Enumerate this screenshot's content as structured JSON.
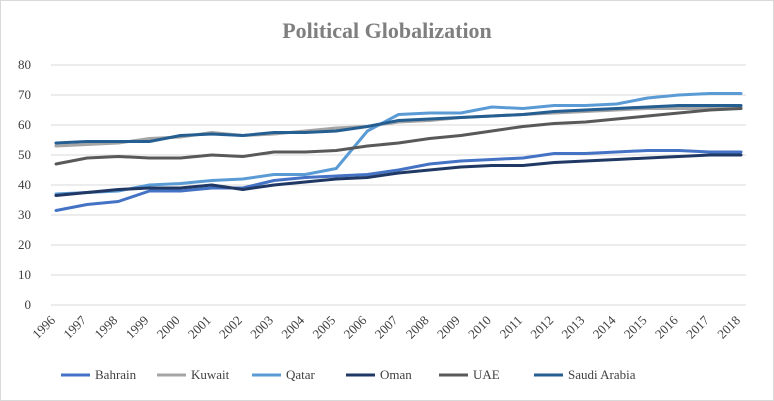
{
  "chart_data": {
    "type": "line",
    "title": "Political Globalization",
    "xlabel": "",
    "ylabel": "",
    "ylim": [
      0,
      80
    ],
    "yticks": [
      0,
      10,
      20,
      30,
      40,
      50,
      60,
      70,
      80
    ],
    "grid": true,
    "legend": "bottom",
    "x": [
      "1996",
      "1997",
      "1998",
      "1999",
      "2000",
      "2001",
      "2002",
      "2003",
      "2004",
      "2005",
      "2006",
      "2007",
      "2008",
      "2009",
      "2010",
      "2011",
      "2012",
      "2013",
      "2014",
      "2015",
      "2016",
      "2017",
      "2018"
    ],
    "series": [
      {
        "name": "Bahrain",
        "color": "#4472c4",
        "values": [
          31.5,
          33.5,
          34.5,
          38,
          38,
          39,
          39,
          41.5,
          42.5,
          43,
          43.5,
          45,
          47,
          48,
          48.5,
          49,
          50.5,
          50.5,
          51,
          51.5,
          51.5,
          51,
          51
        ]
      },
      {
        "name": "Kuwait",
        "color": "#a5a5a5",
        "values": [
          53,
          53.5,
          54,
          55.5,
          56,
          57.5,
          56.5,
          57,
          58,
          59,
          59.5,
          61,
          61.5,
          62.5,
          63,
          63.5,
          64,
          64.5,
          65,
          65.5,
          65.5,
          65.5,
          66
        ]
      },
      {
        "name": "Qatar",
        "color": "#5b9bd5",
        "values": [
          37,
          37.5,
          38,
          40,
          40.5,
          41.5,
          42,
          43.5,
          43.5,
          45.5,
          58,
          63.5,
          64,
          64,
          66,
          65.5,
          66.5,
          66.5,
          67,
          69,
          70,
          70.5,
          70.5
        ]
      },
      {
        "name": "Oman",
        "color": "#203864",
        "values": [
          36.5,
          37.5,
          38.5,
          39,
          39,
          40,
          38.5,
          40,
          41,
          42,
          42.5,
          44,
          45,
          46,
          46.5,
          46.5,
          47.5,
          48,
          48.5,
          49,
          49.5,
          50,
          50
        ]
      },
      {
        "name": "UAE",
        "color": "#595959",
        "values": [
          47,
          49,
          49.5,
          49,
          49,
          50,
          49.5,
          51,
          51,
          51.5,
          53,
          54,
          55.5,
          56.5,
          58,
          59.5,
          60.5,
          61,
          62,
          63,
          64,
          65,
          65.5
        ]
      },
      {
        "name": "Saudi Arabia",
        "color": "#255e91",
        "values": [
          54,
          54.5,
          54.5,
          54.5,
          56.5,
          57,
          56.5,
          57.5,
          57.5,
          58,
          59.5,
          61.5,
          62,
          62.5,
          63,
          63.5,
          64.5,
          65,
          65.5,
          66,
          66.5,
          66.5,
          66.5
        ]
      }
    ]
  }
}
